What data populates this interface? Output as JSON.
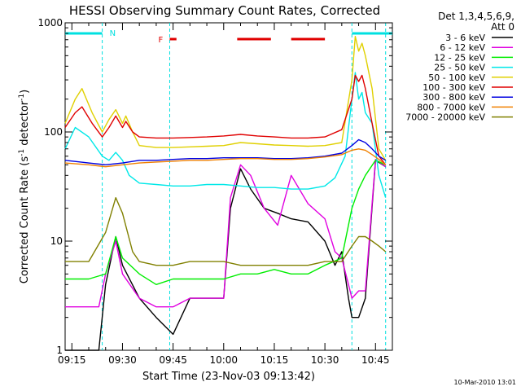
{
  "chart_data": {
    "type": "line",
    "title": "HESSI Observing Summary Count Rates, Corrected",
    "xlabel": "Start Time (23-Nov-03 09:13:42)",
    "ylabel": "Corrected Count Rate (s",
    "ylabel_sup1": "-1",
    "ylabel_mid": " detector",
    "ylabel_sup2": "-1",
    "ylabel_end": ")",
    "y_scale": "log",
    "ylim": [
      1,
      1000
    ],
    "xlim": [
      "09:13",
      "10:50"
    ],
    "x_ticks": [
      "09:15",
      "09:30",
      "09:45",
      "10:00",
      "10:15",
      "10:30",
      "10:45"
    ],
    "y_ticks": [
      "1",
      "10",
      "100",
      "1000"
    ],
    "grid": false,
    "legend_title": [
      "Det 1,3,4,5,6,9,",
      "Att 0"
    ],
    "legend_position": "right",
    "footer": "10-Mar-2010 13:01",
    "flag_marks": {
      "N_label": "N",
      "F_label": "F",
      "N_color": "#00e0e0",
      "F_color": "#e00000",
      "N_segments": [
        [
          "09:13",
          "09:24"
        ],
        [
          "10:38",
          "10:50"
        ]
      ],
      "F_segments": [
        [
          "09:44",
          "09:46"
        ],
        [
          "10:04",
          "10:14"
        ],
        [
          "10:20",
          "10:30"
        ]
      ],
      "vlines": [
        "09:24",
        "09:44",
        "10:38",
        "10:48"
      ]
    },
    "series": [
      {
        "name": "3 - 6 keV",
        "color": "#000000",
        "x": [
          "09:13",
          "09:23",
          "09:25",
          "09:28",
          "09:30",
          "09:35",
          "09:40",
          "09:45",
          "09:50",
          "09:55",
          "10:00",
          "10:02",
          "10:05",
          "10:08",
          "10:12",
          "10:16",
          "10:20",
          "10:25",
          "10:30",
          "10:33",
          "10:35",
          "10:37",
          "10:38",
          "10:40",
          "10:42",
          "10:45",
          "10:48"
        ],
        "y": [
          1,
          1,
          4,
          11,
          6,
          3,
          2,
          1.4,
          3,
          3,
          3,
          20,
          46,
          30,
          20,
          18,
          16,
          15,
          10,
          6,
          8,
          3,
          2,
          2,
          3,
          55,
          48
        ]
      },
      {
        "name": "6 - 12 keV",
        "color": "#e000e0",
        "x": [
          "09:13",
          "09:23",
          "09:25",
          "09:28",
          "09:30",
          "09:35",
          "09:40",
          "09:45",
          "09:50",
          "09:55",
          "10:00",
          "10:02",
          "10:05",
          "10:08",
          "10:12",
          "10:16",
          "10:20",
          "10:25",
          "10:30",
          "10:33",
          "10:35",
          "10:37",
          "10:38",
          "10:40",
          "10:42",
          "10:45",
          "10:48"
        ],
        "y": [
          2.5,
          2.5,
          5,
          10,
          5,
          3,
          2.5,
          2.5,
          3,
          3,
          3,
          25,
          50,
          40,
          20,
          14,
          40,
          22,
          16,
          8,
          7,
          4,
          3,
          3.5,
          3.5,
          56,
          48
        ]
      },
      {
        "name": "12 - 25 keV",
        "color": "#00ee00",
        "x": [
          "09:13",
          "09:20",
          "09:25",
          "09:28",
          "09:30",
          "09:35",
          "09:40",
          "09:45",
          "09:50",
          "09:55",
          "10:00",
          "10:05",
          "10:10",
          "10:15",
          "10:20",
          "10:25",
          "10:30",
          "10:35",
          "10:38",
          "10:40",
          "10:42",
          "10:45",
          "10:48"
        ],
        "y": [
          4.5,
          4.5,
          5,
          11,
          7,
          5,
          4,
          4.5,
          4.5,
          4.5,
          4.5,
          5,
          5,
          5.5,
          5,
          5,
          6,
          7,
          20,
          30,
          40,
          55,
          50
        ]
      },
      {
        "name": "25 - 50 keV",
        "color": "#00e8e8",
        "x": [
          "09:13",
          "09:16",
          "09:20",
          "09:24",
          "09:26",
          "09:28",
          "09:30",
          "09:32",
          "09:35",
          "09:40",
          "09:45",
          "09:50",
          "09:55",
          "10:00",
          "10:05",
          "10:10",
          "10:15",
          "10:20",
          "10:25",
          "10:30",
          "10:33",
          "10:36",
          "10:38",
          "10:39",
          "10:40",
          "10:41",
          "10:42",
          "10:44",
          "10:46",
          "10:48"
        ],
        "y": [
          70,
          110,
          90,
          60,
          55,
          65,
          55,
          40,
          34,
          33,
          32,
          32,
          33,
          33,
          32,
          31,
          31,
          30,
          30,
          32,
          38,
          60,
          200,
          350,
          200,
          230,
          150,
          120,
          40,
          25
        ]
      },
      {
        "name": "50 - 100 keV",
        "color": "#e0d000",
        "x": [
          "09:13",
          "09:16",
          "09:18",
          "09:21",
          "09:24",
          "09:26",
          "09:28",
          "09:30",
          "09:31",
          "09:33",
          "09:35",
          "09:40",
          "09:45",
          "09:50",
          "09:55",
          "10:00",
          "10:05",
          "10:10",
          "10:15",
          "10:20",
          "10:25",
          "10:30",
          "10:35",
          "10:38",
          "10:39",
          "10:40",
          "10:41",
          "10:42",
          "10:44",
          "10:46",
          "10:48"
        ],
        "y": [
          120,
          200,
          250,
          150,
          100,
          130,
          160,
          120,
          140,
          100,
          75,
          72,
          72,
          73,
          74,
          75,
          80,
          78,
          76,
          75,
          74,
          75,
          80,
          300,
          750,
          550,
          650,
          500,
          250,
          70,
          55
        ]
      },
      {
        "name": "100 - 300 keV",
        "color": "#e00000",
        "x": [
          "09:13",
          "09:16",
          "09:18",
          "09:21",
          "09:24",
          "09:26",
          "09:28",
          "09:30",
          "09:31",
          "09:33",
          "09:35",
          "09:40",
          "09:45",
          "09:50",
          "09:55",
          "10:00",
          "10:05",
          "10:10",
          "10:15",
          "10:20",
          "10:25",
          "10:30",
          "10:35",
          "10:38",
          "10:39",
          "10:40",
          "10:41",
          "10:42",
          "10:44",
          "10:46",
          "10:48"
        ],
        "y": [
          110,
          150,
          170,
          120,
          90,
          110,
          140,
          110,
          125,
          100,
          90,
          88,
          88,
          89,
          90,
          92,
          95,
          92,
          90,
          88,
          88,
          90,
          105,
          200,
          330,
          290,
          330,
          250,
          120,
          60,
          50
        ]
      },
      {
        "name": "300 - 800 keV",
        "color": "#0000e0",
        "x": [
          "09:13",
          "09:20",
          "09:25",
          "09:30",
          "09:35",
          "09:40",
          "09:45",
          "09:50",
          "09:55",
          "10:00",
          "10:05",
          "10:10",
          "10:15",
          "10:20",
          "10:25",
          "10:30",
          "10:35",
          "10:38",
          "10:40",
          "10:42",
          "10:44",
          "10:46",
          "10:48"
        ],
        "y": [
          55,
          52,
          50,
          52,
          55,
          55,
          56,
          57,
          57,
          58,
          58,
          58,
          57,
          57,
          58,
          60,
          64,
          75,
          85,
          80,
          70,
          60,
          55
        ]
      },
      {
        "name": "800 - 7000 keV",
        "color": "#f08000",
        "x": [
          "09:13",
          "09:20",
          "09:25",
          "09:30",
          "09:35",
          "09:40",
          "09:45",
          "09:50",
          "09:55",
          "10:00",
          "10:05",
          "10:10",
          "10:15",
          "10:20",
          "10:25",
          "10:30",
          "10:35",
          "10:38",
          "10:40",
          "10:42",
          "10:44",
          "10:46",
          "10:48"
        ],
        "y": [
          52,
          50,
          48,
          50,
          52,
          53,
          54,
          55,
          55,
          56,
          57,
          57,
          56,
          56,
          57,
          59,
          62,
          68,
          70,
          68,
          62,
          56,
          50
        ]
      },
      {
        "name": "7000 - 20000 keV",
        "color": "#808000",
        "x": [
          "09:13",
          "09:20",
          "09:25",
          "09:28",
          "09:30",
          "09:33",
          "09:35",
          "09:40",
          "09:45",
          "09:50",
          "09:55",
          "10:00",
          "10:05",
          "10:10",
          "10:15",
          "10:20",
          "10:25",
          "10:30",
          "10:35",
          "10:38",
          "10:40",
          "10:42",
          "10:44",
          "10:46",
          "10:48"
        ],
        "y": [
          6.5,
          6.5,
          12,
          25,
          18,
          8,
          6.5,
          6,
          6,
          6.5,
          6.5,
          6.5,
          6,
          6,
          6,
          6,
          6,
          6.5,
          6.5,
          9,
          11,
          11,
          10,
          9,
          8
        ]
      }
    ]
  }
}
